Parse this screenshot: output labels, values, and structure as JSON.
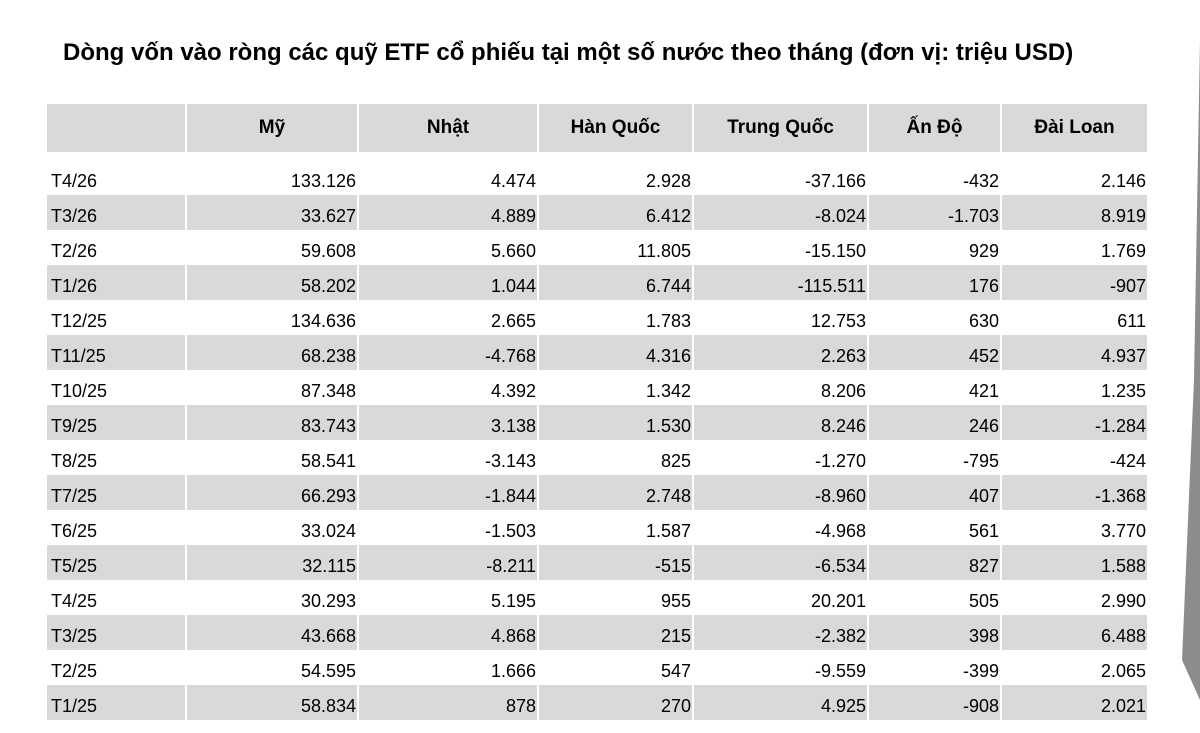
{
  "title": "Dòng vốn vào ròng các quỹ ETF cổ phiếu tại một số nước theo tháng (đơn vị: triệu USD)",
  "table": {
    "headers": [
      "",
      "Mỹ",
      "Nhật",
      "Hàn Quốc",
      "Trung Quốc",
      "Ấn Độ",
      "Đài Loan"
    ],
    "rows": [
      [
        "T4/26",
        "133.126",
        "4.474",
        "2.928",
        "-37.166",
        "-432",
        "2.146"
      ],
      [
        "T3/26",
        "33.627",
        "4.889",
        "6.412",
        "-8.024",
        "-1.703",
        "8.919"
      ],
      [
        "T2/26",
        "59.608",
        "5.660",
        "11.805",
        "-15.150",
        "929",
        "1.769"
      ],
      [
        "T1/26",
        "58.202",
        "1.044",
        "6.744",
        "-115.511",
        "176",
        "-907"
      ],
      [
        "T12/25",
        "134.636",
        "2.665",
        "1.783",
        "12.753",
        "630",
        "611"
      ],
      [
        "T11/25",
        "68.238",
        "-4.768",
        "4.316",
        "2.263",
        "452",
        "4.937"
      ],
      [
        "T10/25",
        "87.348",
        "4.392",
        "1.342",
        "8.206",
        "421",
        "1.235"
      ],
      [
        "T9/25",
        "83.743",
        "3.138",
        "1.530",
        "8.246",
        "246",
        "-1.284"
      ],
      [
        "T8/25",
        "58.541",
        "-3.143",
        "825",
        "-1.270",
        "-795",
        "-424"
      ],
      [
        "T7/25",
        "66.293",
        "-1.844",
        "2.748",
        "-8.960",
        "407",
        "-1.368"
      ],
      [
        "T6/25",
        "33.024",
        "-1.503",
        "1.587",
        "-4.968",
        "561",
        "3.770"
      ],
      [
        "T5/25",
        "32.115",
        "-8.211",
        "-515",
        "-6.534",
        "827",
        "1.588"
      ],
      [
        "T4/25",
        "30.293",
        "5.195",
        "955",
        "20.201",
        "505",
        "2.990"
      ],
      [
        "T3/25",
        "43.668",
        "4.868",
        "215",
        "-2.382",
        "398",
        "6.488"
      ],
      [
        "T2/25",
        "54.595",
        "1.666",
        "547",
        "-9.559",
        "-399",
        "2.065"
      ],
      [
        "T1/25",
        "58.834",
        "878",
        "270",
        "4.925",
        "-908",
        "2.021"
      ]
    ]
  }
}
